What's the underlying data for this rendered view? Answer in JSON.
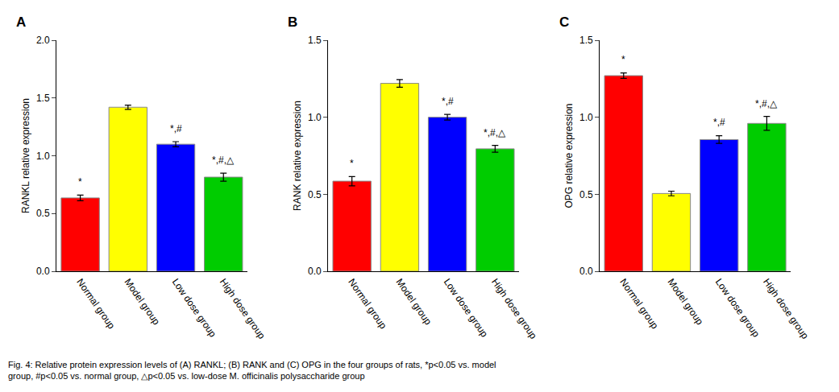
{
  "chart_data": [
    {
      "type": "bar",
      "title": "A",
      "ylabel": "RANKL relative expression",
      "categories": [
        "Normal group",
        "Model group",
        "Low dose group",
        "High dose group"
      ],
      "values": [
        0.635,
        1.42,
        1.1,
        0.815
      ],
      "errors": [
        0.025,
        0.018,
        0.022,
        0.035
      ],
      "colors": [
        "#ff0000",
        "#ffff00",
        "#0000ff",
        "#00cc00"
      ],
      "ylim": [
        0,
        2.0
      ],
      "yticks": [
        {
          "value": 0.0,
          "label": "0.0"
        },
        0.5,
        {
          "value": 1.0,
          "label": "1.0"
        },
        1.5,
        {
          "value": 2.0,
          "label": "2.0"
        }
      ],
      "annotations": [
        {
          "category": "Normal group",
          "text": "*"
        },
        {
          "category": "Low dose group",
          "text": "*,#"
        },
        {
          "category": "High dose group",
          "text": "*,#,△"
        }
      ],
      "grid": false
    },
    {
      "type": "bar",
      "title": "B",
      "ylabel": "RANK relative expression",
      "categories": [
        "Normal group",
        "Model group",
        "Low dose group",
        "High dose group"
      ],
      "values": [
        0.585,
        1.22,
        1.0,
        0.795
      ],
      "errors": [
        0.03,
        0.025,
        0.018,
        0.022
      ],
      "colors": [
        "#ff0000",
        "#ffff00",
        "#0000ff",
        "#00cc00"
      ],
      "ylim": [
        0,
        1.5
      ],
      "yticks": [
        {
          "value": 0.0,
          "label": "0.0"
        },
        0.5,
        {
          "value": 1.0,
          "label": "1.0"
        },
        1.5
      ],
      "annotations": [
        {
          "category": "Normal group",
          "text": "*"
        },
        {
          "category": "Low dose group",
          "text": "*,#"
        },
        {
          "category": "High dose group",
          "text": "*,#,△"
        }
      ],
      "grid": false
    },
    {
      "type": "bar",
      "title": "C",
      "ylabel": "OPG relative expression",
      "categories": [
        "Normal group",
        "Model group",
        "Low dose group",
        "High dose group"
      ],
      "values": [
        1.27,
        0.505,
        0.855,
        0.96
      ],
      "errors": [
        0.018,
        0.015,
        0.025,
        0.045
      ],
      "colors": [
        "#ff0000",
        "#ffff00",
        "#0000ff",
        "#00cc00"
      ],
      "ylim": [
        0,
        1.5
      ],
      "yticks": [
        {
          "value": 0.0,
          "label": "0.0"
        },
        0.5,
        {
          "value": 1.0,
          "label": "1.0"
        },
        1.5
      ],
      "annotations": [
        {
          "category": "Normal group",
          "text": "*"
        },
        {
          "category": "Low dose group",
          "text": "*,#"
        },
        {
          "category": "High dose group",
          "text": "*,#,△"
        }
      ],
      "grid": false
    }
  ],
  "caption": "Fig. 4: Relative protein expression levels of (A) RANKL; (B) RANK and (C) OPG in the four groups of rats, *p<0.05 vs. model\ngroup, #p<0.05 vs. normal group, △p<0.05 vs. low-dose M. officinalis polysaccharide group"
}
